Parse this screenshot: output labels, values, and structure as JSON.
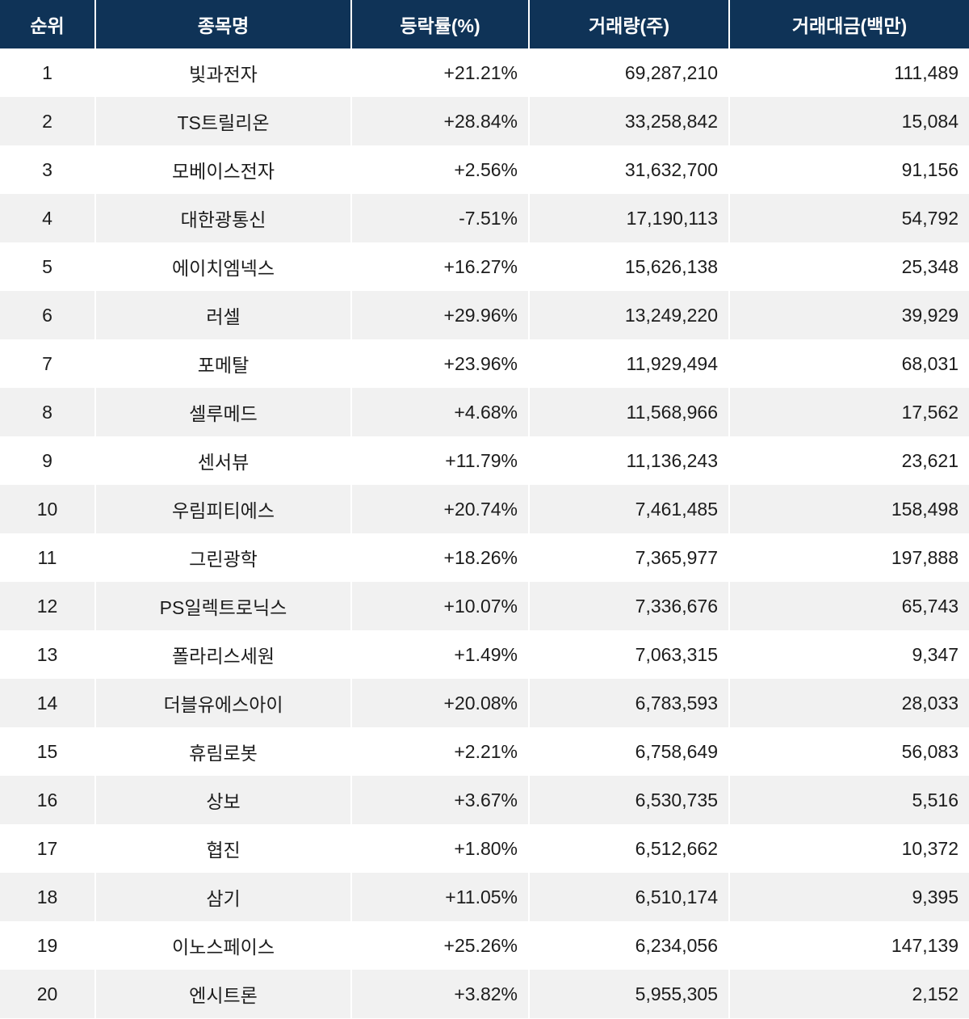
{
  "colors": {
    "header_bg": "#0f3357",
    "header_text": "#ffffff",
    "row_alt_bg": "#f1f1f1",
    "body_text": "#1c1c1c"
  },
  "chart_data": {
    "type": "table",
    "columns": [
      "순위",
      "종목명",
      "등락률(%)",
      "거래량(주)",
      "거래대금(백만)"
    ],
    "rows": [
      {
        "rank": "1",
        "name": "빛과전자",
        "change": "+21.21%",
        "volume": "69,287,210",
        "value": "111,489"
      },
      {
        "rank": "2",
        "name": "TS트릴리온",
        "change": "+28.84%",
        "volume": "33,258,842",
        "value": "15,084"
      },
      {
        "rank": "3",
        "name": "모베이스전자",
        "change": "+2.56%",
        "volume": "31,632,700",
        "value": "91,156"
      },
      {
        "rank": "4",
        "name": "대한광통신",
        "change": "-7.51%",
        "volume": "17,190,113",
        "value": "54,792"
      },
      {
        "rank": "5",
        "name": "에이치엠넥스",
        "change": "+16.27%",
        "volume": "15,626,138",
        "value": "25,348"
      },
      {
        "rank": "6",
        "name": "러셀",
        "change": "+29.96%",
        "volume": "13,249,220",
        "value": "39,929"
      },
      {
        "rank": "7",
        "name": "포메탈",
        "change": "+23.96%",
        "volume": "11,929,494",
        "value": "68,031"
      },
      {
        "rank": "8",
        "name": "셀루메드",
        "change": "+4.68%",
        "volume": "11,568,966",
        "value": "17,562"
      },
      {
        "rank": "9",
        "name": "센서뷰",
        "change": "+11.79%",
        "volume": "11,136,243",
        "value": "23,621"
      },
      {
        "rank": "10",
        "name": "우림피티에스",
        "change": "+20.74%",
        "volume": "7,461,485",
        "value": "158,498"
      },
      {
        "rank": "11",
        "name": "그린광학",
        "change": "+18.26%",
        "volume": "7,365,977",
        "value": "197,888"
      },
      {
        "rank": "12",
        "name": "PS일렉트로닉스",
        "change": "+10.07%",
        "volume": "7,336,676",
        "value": "65,743"
      },
      {
        "rank": "13",
        "name": "폴라리스세원",
        "change": "+1.49%",
        "volume": "7,063,315",
        "value": "9,347"
      },
      {
        "rank": "14",
        "name": "더블유에스아이",
        "change": "+20.08%",
        "volume": "6,783,593",
        "value": "28,033"
      },
      {
        "rank": "15",
        "name": "휴림로봇",
        "change": "+2.21%",
        "volume": "6,758,649",
        "value": "56,083"
      },
      {
        "rank": "16",
        "name": "상보",
        "change": "+3.67%",
        "volume": "6,530,735",
        "value": "5,516"
      },
      {
        "rank": "17",
        "name": "협진",
        "change": "+1.80%",
        "volume": "6,512,662",
        "value": "10,372"
      },
      {
        "rank": "18",
        "name": "삼기",
        "change": "+11.05%",
        "volume": "6,510,174",
        "value": "9,395"
      },
      {
        "rank": "19",
        "name": "이노스페이스",
        "change": "+25.26%",
        "volume": "6,234,056",
        "value": "147,139"
      },
      {
        "rank": "20",
        "name": "엔시트론",
        "change": "+3.82%",
        "volume": "5,955,305",
        "value": "2,152"
      }
    ]
  }
}
